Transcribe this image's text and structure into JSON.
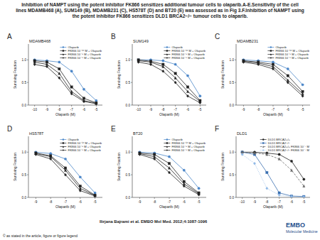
{
  "header": {
    "title": "Inhibition of NAMPT using the potent inhibitor FK866 sensitizes additional tumour cells to olaparib.A-E.Sensitivity of the cell lines MDAMB468 (A), SUM149 (B), MDAMB231 (C), HS578T (D) and BT20 (E) was assessed as in Fig 3.F.Inhibition of NAMPT using the potent inhibitor FK866 sensitizes DLD1 BRCA2−/− tumour cells to olaparib."
  },
  "chart_data": [
    {
      "type": "line",
      "panel": "A",
      "title": "MDAMB468",
      "x_label": "Olaparib (M)",
      "y_label": "Surviving Fraction",
      "grid": false,
      "legend": "upper right",
      "x": [
        -10,
        -9,
        -8,
        -7,
        -6,
        -5
      ],
      "xlim": [
        -10.5,
        -4.5
      ],
      "xticks": [
        -10,
        -9,
        -8,
        -7,
        -6,
        -5
      ],
      "ylim": [
        0,
        1.35
      ],
      "yticks": [
        {
          "value": 0,
          "label": "0.0"
        },
        {
          "value": 0.5,
          "label": "0.5"
        },
        {
          "value": 1,
          "label": "1.0"
        }
      ],
      "series": [
        {
          "name": "Olaparib",
          "color": "#4a86c8",
          "marker": "circle",
          "line_style": "solid",
          "values": [
            1.0,
            0.98,
            0.95,
            0.75,
            0.35,
            0.1
          ]
        },
        {
          "name": "FK866 10⁻¹⁰ M + Olaparib",
          "color": "#222222",
          "marker": "square",
          "line_style": "solid",
          "values": [
            0.98,
            0.95,
            0.8,
            0.4,
            0.15,
            0.05
          ]
        },
        {
          "name": "FK866 10⁻⁹ M + Olaparib",
          "color": "#222222",
          "marker": "triangle",
          "line_style": "solid",
          "values": [
            0.95,
            0.9,
            0.7,
            0.3,
            0.1,
            0.04
          ]
        },
        {
          "name": "FK866 10⁻⁸ M + Olaparib",
          "color": "#222222",
          "marker": "diamond",
          "line_style": "solid",
          "values": [
            0.9,
            0.85,
            0.6,
            0.25,
            0.08,
            0.03
          ]
        }
      ]
    },
    {
      "type": "line",
      "panel": "B",
      "title": "SUM149",
      "x_label": "Olaparib (M)",
      "y_label": "Surviving Fraction",
      "grid": false,
      "legend": "upper right",
      "x": [
        -10,
        -9,
        -8,
        -7,
        -6,
        -5
      ],
      "xlim": [
        -10.5,
        -4.5
      ],
      "xticks": [
        -10,
        -9,
        -8,
        -7,
        -6,
        -5
      ],
      "ylim": [
        0,
        1.35
      ],
      "yticks": [
        {
          "value": 0,
          "label": "0.0"
        },
        {
          "value": 0.5,
          "label": "0.5"
        },
        {
          "value": 1,
          "label": "1.0"
        }
      ],
      "series": [
        {
          "name": "Olaparib",
          "color": "#4a86c8",
          "marker": "circle",
          "line_style": "solid",
          "values": [
            1.0,
            1.0,
            0.98,
            0.9,
            0.65,
            0.2
          ]
        },
        {
          "name": "FK866 10⁻¹⁰ M + Olaparib",
          "color": "#222222",
          "marker": "square",
          "line_style": "solid",
          "values": [
            1.0,
            0.97,
            0.9,
            0.7,
            0.4,
            0.1
          ]
        },
        {
          "name": "FK866 10⁻⁹ M + Olaparib",
          "color": "#222222",
          "marker": "triangle",
          "line_style": "solid",
          "values": [
            0.98,
            0.95,
            0.85,
            0.6,
            0.3,
            0.08
          ]
        },
        {
          "name": "FK866 10⁻⁸ M + Olaparib",
          "color": "#222222",
          "marker": "diamond",
          "line_style": "solid",
          "values": [
            0.95,
            0.9,
            0.75,
            0.5,
            0.2,
            0.05
          ]
        }
      ]
    },
    {
      "type": "line",
      "panel": "C",
      "title": "MDAMB231",
      "x_label": "Olaparib (M)",
      "y_label": "Surviving Fraction",
      "grid": false,
      "legend": "upper right",
      "x": [
        -9,
        -8,
        -7,
        -6,
        -5
      ],
      "xlim": [
        -9.5,
        -4.5
      ],
      "xticks": [
        -9,
        -8,
        -7,
        -6,
        -5
      ],
      "ylim": [
        0,
        1.35
      ],
      "yticks": [
        {
          "value": 0,
          "label": "0.0"
        },
        {
          "value": 0.5,
          "label": "0.5"
        },
        {
          "value": 1,
          "label": "1.0"
        }
      ],
      "series": [
        {
          "name": "Olaparib",
          "color": "#4a86c8",
          "marker": "circle",
          "line_style": "solid",
          "values": [
            1.0,
            0.98,
            0.95,
            0.8,
            0.45
          ]
        },
        {
          "name": "FK866 10⁻¹⁰ M + Olaparib",
          "color": "#222222",
          "marker": "square",
          "line_style": "solid",
          "values": [
            0.98,
            0.95,
            0.9,
            0.65,
            0.3
          ]
        },
        {
          "name": "FK866 10⁻⁹ M + Olaparib",
          "color": "#222222",
          "marker": "triangle",
          "line_style": "solid",
          "values": [
            0.97,
            0.93,
            0.85,
            0.55,
            0.25
          ]
        },
        {
          "name": "FK866 10⁻⁸ M + Olaparib",
          "color": "#222222",
          "marker": "diamond",
          "line_style": "solid",
          "values": [
            0.95,
            0.9,
            0.8,
            0.5,
            0.2
          ]
        }
      ]
    },
    {
      "type": "line",
      "panel": "D",
      "title": "HS578T",
      "x_label": "Olaparib (M)",
      "y_label": "Surviving Fraction",
      "grid": false,
      "legend": "upper right",
      "x": [
        -9,
        -8,
        -7,
        -6,
        -5
      ],
      "xlim": [
        -9.5,
        -4.5
      ],
      "xticks": [
        -9,
        -8,
        -7,
        -6,
        -5
      ],
      "ylim": [
        0,
        1.35
      ],
      "yticks": [
        {
          "value": 0,
          "label": "0.0"
        },
        {
          "value": 0.5,
          "label": "0.5"
        },
        {
          "value": 1,
          "label": "1.0"
        }
      ],
      "series": [
        {
          "name": "Olaparib",
          "color": "#4a86c8",
          "marker": "circle",
          "line_style": "solid",
          "values": [
            1.0,
            0.97,
            0.85,
            0.45,
            0.1
          ]
        },
        {
          "name": "FK866 10⁻¹⁰ M + Olaparib",
          "color": "#222222",
          "marker": "square",
          "line_style": "solid",
          "values": [
            0.98,
            0.92,
            0.65,
            0.25,
            0.05
          ]
        },
        {
          "name": "FK866 10⁻⁹ M + Olaparib",
          "color": "#222222",
          "marker": "triangle",
          "line_style": "solid",
          "values": [
            0.97,
            0.9,
            0.6,
            0.2,
            0.04
          ]
        },
        {
          "name": "FK866 10⁻⁸ M + Olaparib",
          "color": "#222222",
          "marker": "diamond",
          "line_style": "solid",
          "values": [
            0.95,
            0.85,
            0.5,
            0.15,
            0.03
          ]
        }
      ]
    },
    {
      "type": "line",
      "panel": "E",
      "title": "BT20",
      "x_label": "Olaparib (M)",
      "y_label": "Surviving Fraction",
      "grid": false,
      "legend": "upper right",
      "x": [
        -9,
        -8,
        -7,
        -6,
        -5
      ],
      "xlim": [
        -9.5,
        -4.5
      ],
      "xticks": [
        -9,
        -8,
        -7,
        -6,
        -5
      ],
      "ylim": [
        0,
        1.35
      ],
      "yticks": [
        {
          "value": 0,
          "label": "0.0"
        },
        {
          "value": 0.5,
          "label": "0.5"
        },
        {
          "value": 1,
          "label": "1.0"
        }
      ],
      "series": [
        {
          "name": "Olaparib",
          "color": "#4a86c8",
          "marker": "circle",
          "line_style": "solid",
          "values": [
            1.0,
            0.98,
            0.9,
            0.6,
            0.2
          ]
        },
        {
          "name": "FK866 10⁻¹⁰ M + Olaparib",
          "color": "#222222",
          "marker": "square",
          "line_style": "solid",
          "values": [
            0.98,
            0.95,
            0.75,
            0.35,
            0.1
          ]
        },
        {
          "name": "FK866 10⁻⁹ M + Olaparib",
          "color": "#222222",
          "marker": "triangle",
          "line_style": "solid",
          "values": [
            0.97,
            0.9,
            0.65,
            0.3,
            0.08
          ]
        },
        {
          "name": "FK866 10⁻⁸ M + Olaparib",
          "color": "#222222",
          "marker": "diamond",
          "line_style": "solid",
          "values": [
            0.95,
            0.85,
            0.55,
            0.25,
            0.06
          ]
        }
      ]
    },
    {
      "type": "line",
      "panel": "F",
      "title": "DLD1",
      "x_label": "Olaparib (M)",
      "y_label": "Surviving Fraction",
      "grid": false,
      "legend": "upper right",
      "x": [
        -10,
        -9,
        -8,
        -7,
        -6,
        -5
      ],
      "xlim": [
        -10.5,
        -4.5
      ],
      "xticks": [
        -10,
        -9,
        -8,
        -7,
        -6,
        -5
      ],
      "ylim": [
        0,
        1.35
      ],
      "yticks": [
        {
          "value": 0,
          "label": "0.0"
        },
        {
          "value": 0.5,
          "label": "0.5"
        },
        {
          "value": 1,
          "label": "1.0"
        }
      ],
      "series": [
        {
          "name": "DLD1 BRCA2+/+",
          "color": "#222222",
          "marker": "circle",
          "line_style": "solid",
          "values": [
            1.0,
            1.0,
            0.98,
            0.95,
            0.8,
            0.4
          ]
        },
        {
          "name": "DLD1 BRCA2−/−",
          "color": "#3a6fb0",
          "marker": "square",
          "line_style": "solid",
          "values": [
            1.0,
            0.95,
            0.55,
            0.1,
            0.03,
            0.02
          ]
        },
        {
          "name": "DLD1 BRCA2+/+ FK866 10⁻⁷ M",
          "color": "#666666",
          "marker": "triangle",
          "line_style": "dashed",
          "values": [
            1.0,
            0.98,
            0.95,
            0.85,
            0.6,
            0.25
          ]
        },
        {
          "name": "DLD1 BRCA2−/− FK866 10⁻⁷ M",
          "color": "#8fb8e6",
          "marker": "diamond",
          "line_style": "dotted",
          "values": [
            0.95,
            0.75,
            0.2,
            0.05,
            0.02,
            0.01
          ]
        }
      ]
    }
  ],
  "footer": {
    "citation": "Ilirjana Bajrami et al. EMBO Mol Med. 2012;4:1087-1096",
    "copyright": "© as stated in the article, figure or figure legend",
    "logo_top": "EMBO",
    "logo_bottom": "Molecular Medicine"
  }
}
